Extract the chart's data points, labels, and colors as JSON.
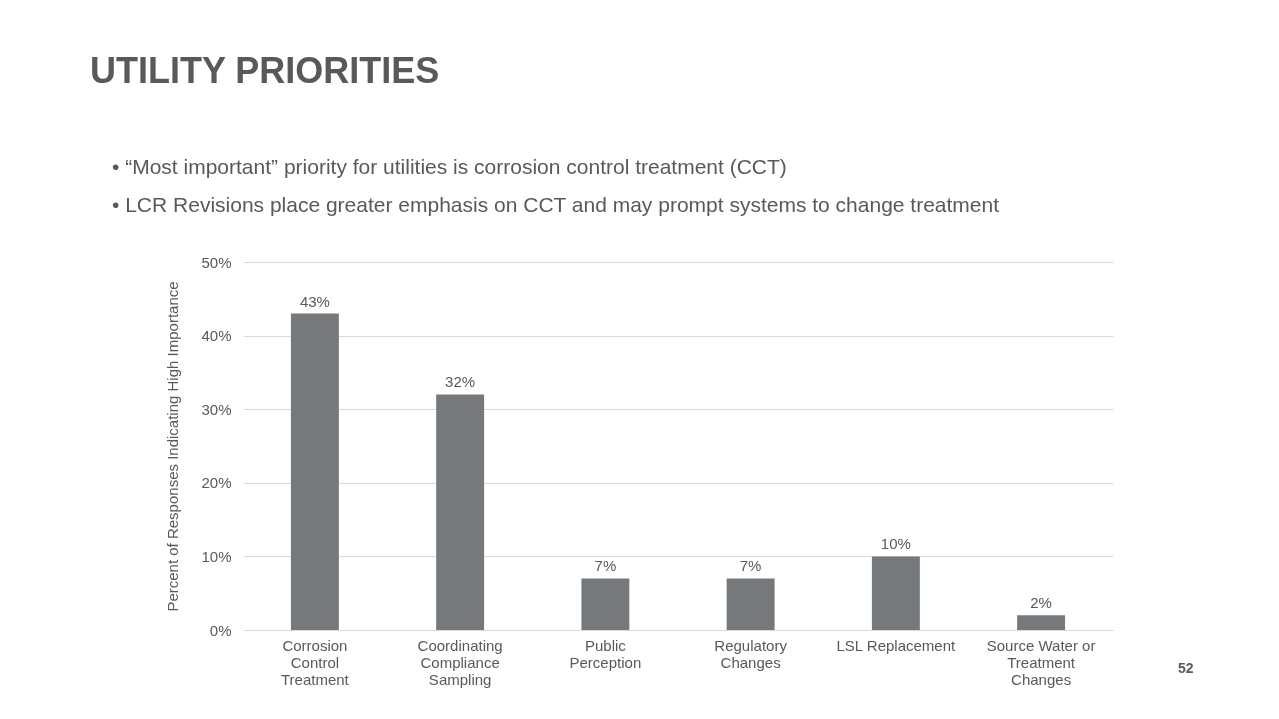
{
  "chart_data": {
    "type": "bar",
    "title": "UTILITY PRIORITIES",
    "annotations": [
      "• “Most important” priority for utilities is corrosion control treatment (CCT)",
      "• LCR Revisions place greater emphasis on CCT and may prompt systems to change treatment",
      "52"
    ],
    "categories": [
      "Corrosion Control Treatment",
      "Coordinating Compliance Sampling",
      "Public Perception",
      "Regulatory Changes",
      "LSL Replacement",
      "Source Water or Treatment Changes"
    ],
    "values": [
      43,
      32,
      7,
      7,
      10,
      2
    ],
    "value_labels": [
      "43%",
      "32%",
      "7%",
      "7%",
      "10%",
      "2%"
    ],
    "color": "#76797c",
    "ylabel": "Percent of Responses Indicating High Importance",
    "ylim": [
      0,
      50
    ],
    "yticks": [
      {
        "value": 0,
        "label": "0%"
      },
      {
        "value": 10,
        "label": "10%"
      },
      {
        "value": 20,
        "label": "20%"
      },
      {
        "value": 30,
        "label": "30%"
      },
      {
        "value": 40,
        "label": "40%"
      },
      {
        "value": 50,
        "label": "50%"
      }
    ],
    "grid": "y"
  }
}
